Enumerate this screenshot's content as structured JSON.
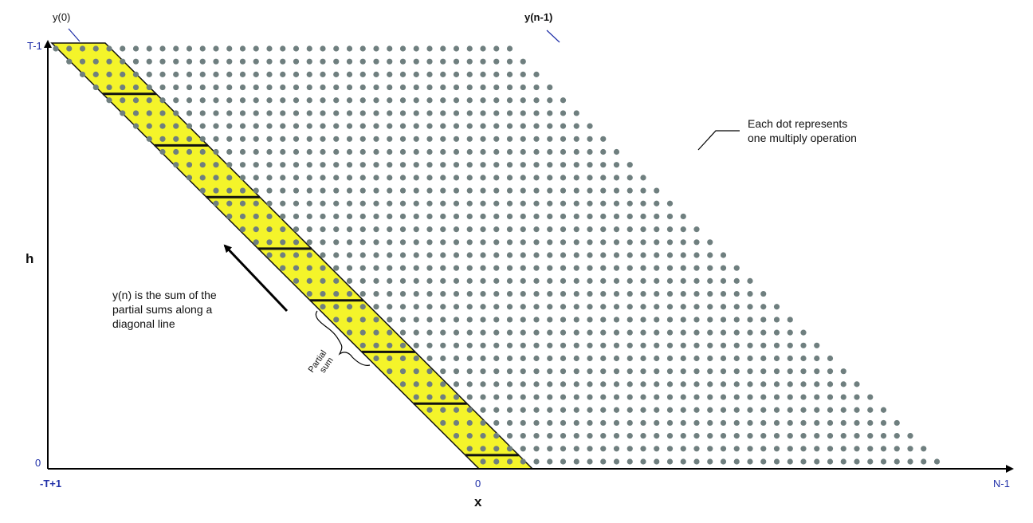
{
  "labels": {
    "y0": "y(0)",
    "yn1": "y(n-1)",
    "t_minus_1": "T-1",
    "zero_h": "0",
    "h_axis": "h",
    "neg_t_plus_1": "-T+1",
    "zero_x": "0",
    "n_minus_1": "N-1",
    "x_axis": "x",
    "dot_note_line1": "Each dot represents",
    "dot_note_line2": "one multiply operation",
    "yn_note_line1": "y(n) is the sum of the",
    "yn_note_line2": "partial sums along a",
    "yn_note_line3": "diagonal line",
    "partial_line1": "Partial",
    "partial_line2": "sum"
  },
  "colors": {
    "dot": "#6f7f7f",
    "band": "#f4f42a",
    "band_edge": "#111111",
    "axis": "#000000",
    "label_blue": "#1f2fa8"
  },
  "grid": {
    "rows": 33,
    "cols_per_row": 35,
    "band_cols": 4,
    "partial_sum_rows": 4
  }
}
